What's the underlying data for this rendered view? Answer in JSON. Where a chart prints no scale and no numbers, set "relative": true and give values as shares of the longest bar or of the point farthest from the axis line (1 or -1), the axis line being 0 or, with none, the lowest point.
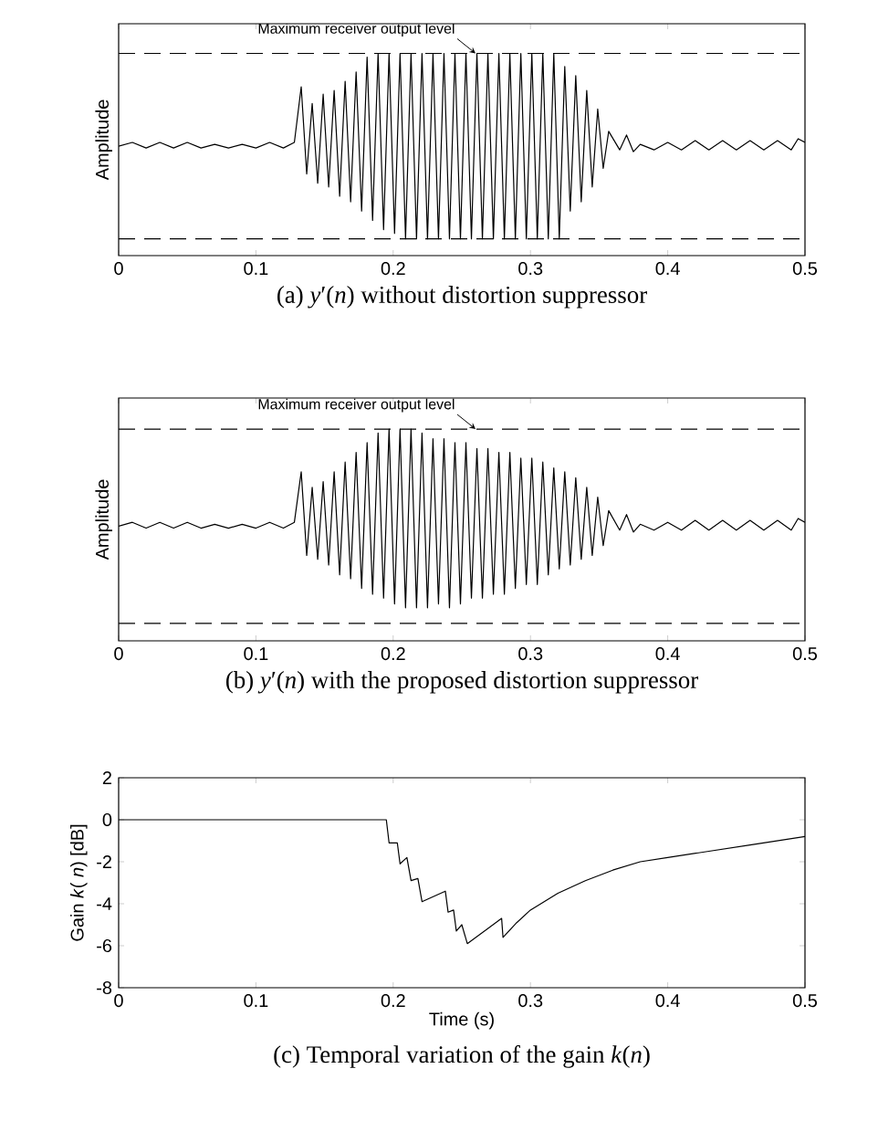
{
  "chart_data": [
    {
      "type": "line",
      "relative": true,
      "title": "(a) *y*′(*n*) without distortion suppressor",
      "ylabel": "Amplitude",
      "color": "#000000",
      "x": [
        0,
        0.01,
        0.02,
        0.03,
        0.04,
        0.05,
        0.06,
        0.07,
        0.08,
        0.09,
        0.1,
        0.11,
        0.12,
        0.128,
        0.133,
        0.137,
        0.141,
        0.145,
        0.149,
        0.153,
        0.157,
        0.161,
        0.165,
        0.169,
        0.173,
        0.177,
        0.181,
        0.185,
        0.189,
        0.193,
        0.197,
        0.201,
        0.205,
        0.209,
        0.213,
        0.217,
        0.221,
        0.225,
        0.229,
        0.233,
        0.237,
        0.241,
        0.245,
        0.249,
        0.253,
        0.257,
        0.261,
        0.265,
        0.269,
        0.273,
        0.277,
        0.281,
        0.285,
        0.289,
        0.293,
        0.297,
        0.301,
        0.305,
        0.309,
        0.313,
        0.317,
        0.321,
        0.325,
        0.329,
        0.333,
        0.337,
        0.341,
        0.345,
        0.349,
        0.353,
        0.357,
        0.365,
        0.37,
        0.375,
        0.38,
        0.39,
        0.4,
        0.41,
        0.42,
        0.43,
        0.44,
        0.45,
        0.46,
        0.47,
        0.48,
        0.49,
        0.495,
        0.5
      ],
      "values": [
        0.5,
        0.52,
        0.49,
        0.52,
        0.49,
        0.52,
        0.49,
        0.51,
        0.49,
        0.51,
        0.49,
        0.52,
        0.49,
        0.52,
        0.82,
        0.35,
        0.73,
        0.3,
        0.78,
        0.28,
        0.8,
        0.23,
        0.85,
        0.2,
        0.9,
        0.15,
        0.98,
        0.1,
        1,
        0.05,
        1,
        0.03,
        1,
        0,
        1,
        0,
        1,
        0,
        1,
        0,
        1,
        0,
        1,
        0,
        1,
        0,
        1,
        0,
        1,
        0,
        1,
        0,
        1,
        0,
        1,
        0,
        1,
        0,
        1,
        0,
        1,
        0,
        0.93,
        0.15,
        0.88,
        0.2,
        0.8,
        0.28,
        0.7,
        0.38,
        0.58,
        0.48,
        0.56,
        0.47,
        0.51,
        0.48,
        0.52,
        0.48,
        0.53,
        0.48,
        0.53,
        0.48,
        0.53,
        0.48,
        0.53,
        0.48,
        0.54,
        0.52
      ],
      "xlim": [
        0,
        0.5
      ],
      "xticks": [
        0,
        0.1,
        0.2,
        0.3,
        0.4,
        0.5
      ],
      "ref_lines": [
        {
          "axis": "y",
          "value": 1,
          "line_style": "dashed"
        },
        {
          "axis": "y",
          "value": 0,
          "line_style": "dashed"
        }
      ],
      "annotations": [
        {
          "text": "Maximum receiver output level",
          "x": 0.26,
          "y": 1
        }
      ]
    },
    {
      "type": "line",
      "relative": true,
      "title": "(b) *y*′(*n*) with the proposed distortion suppressor",
      "ylabel": "Amplitude",
      "color": "#000000",
      "x": [
        0,
        0.01,
        0.02,
        0.03,
        0.04,
        0.05,
        0.06,
        0.07,
        0.08,
        0.09,
        0.1,
        0.11,
        0.12,
        0.128,
        0.133,
        0.137,
        0.141,
        0.145,
        0.149,
        0.153,
        0.157,
        0.161,
        0.165,
        0.169,
        0.173,
        0.177,
        0.181,
        0.185,
        0.189,
        0.193,
        0.197,
        0.201,
        0.205,
        0.209,
        0.213,
        0.217,
        0.221,
        0.225,
        0.229,
        0.233,
        0.237,
        0.241,
        0.245,
        0.249,
        0.253,
        0.257,
        0.261,
        0.265,
        0.269,
        0.273,
        0.277,
        0.281,
        0.285,
        0.289,
        0.293,
        0.297,
        0.301,
        0.305,
        0.309,
        0.313,
        0.317,
        0.321,
        0.325,
        0.329,
        0.333,
        0.337,
        0.341,
        0.345,
        0.349,
        0.353,
        0.357,
        0.365,
        0.37,
        0.375,
        0.38,
        0.39,
        0.4,
        0.41,
        0.42,
        0.43,
        0.44,
        0.45,
        0.46,
        0.47,
        0.48,
        0.49,
        0.495,
        0.5
      ],
      "values": [
        0.5,
        0.52,
        0.49,
        0.52,
        0.49,
        0.52,
        0.49,
        0.51,
        0.49,
        0.51,
        0.49,
        0.52,
        0.49,
        0.52,
        0.78,
        0.35,
        0.7,
        0.33,
        0.73,
        0.3,
        0.78,
        0.25,
        0.83,
        0.23,
        0.88,
        0.18,
        0.93,
        0.15,
        0.98,
        0.13,
        1,
        0.1,
        1,
        0.08,
        1,
        0.08,
        0.98,
        0.08,
        0.95,
        0.1,
        0.95,
        0.08,
        0.93,
        0.1,
        0.93,
        0.13,
        0.9,
        0.13,
        0.9,
        0.15,
        0.88,
        0.15,
        0.88,
        0.18,
        0.85,
        0.2,
        0.85,
        0.2,
        0.83,
        0.25,
        0.8,
        0.28,
        0.78,
        0.3,
        0.75,
        0.33,
        0.7,
        0.35,
        0.65,
        0.4,
        0.58,
        0.48,
        0.56,
        0.47,
        0.51,
        0.48,
        0.52,
        0.48,
        0.53,
        0.48,
        0.53,
        0.48,
        0.53,
        0.48,
        0.53,
        0.48,
        0.54,
        0.52
      ],
      "xlim": [
        0,
        0.5
      ],
      "xticks": [
        0,
        0.1,
        0.2,
        0.3,
        0.4,
        0.5
      ],
      "ref_lines": [
        {
          "axis": "y",
          "value": 1,
          "line_style": "dashed"
        },
        {
          "axis": "y",
          "value": 0,
          "line_style": "dashed"
        }
      ],
      "annotations": [
        {
          "text": "Maximum receiver output level",
          "x": 0.26,
          "y": 1
        }
      ]
    },
    {
      "type": "line",
      "title": "(c) Temporal variation of the gain *k*(*n*)",
      "xlabel": "Time (s)",
      "ylabel": "Gain *k*( *n*) [dB]",
      "color": "#000000",
      "x": [
        0,
        0.195,
        0.197,
        0.203,
        0.205,
        0.21,
        0.213,
        0.218,
        0.221,
        0.238,
        0.24,
        0.244,
        0.246,
        0.25,
        0.254,
        0.279,
        0.28,
        0.29,
        0.3,
        0.32,
        0.34,
        0.36,
        0.38,
        0.4,
        0.43,
        0.46,
        0.5
      ],
      "values": [
        0,
        0,
        -1.1,
        -1.1,
        -2.1,
        -1.8,
        -2.9,
        -2.8,
        -3.9,
        -3.4,
        -4.4,
        -4.3,
        -5.3,
        -5.0,
        -5.9,
        -4.7,
        -5.6,
        -4.9,
        -4.3,
        -3.5,
        -2.9,
        -2.4,
        -2.0,
        -1.8,
        -1.5,
        -1.2,
        -0.8
      ],
      "xlim": [
        0,
        0.5
      ],
      "xticks": [
        0,
        0.1,
        0.2,
        0.3,
        0.4,
        0.5
      ],
      "ylim": [
        -8,
        2
      ],
      "yticks": [
        -8,
        -6,
        -4,
        -2,
        0,
        2
      ]
    }
  ]
}
